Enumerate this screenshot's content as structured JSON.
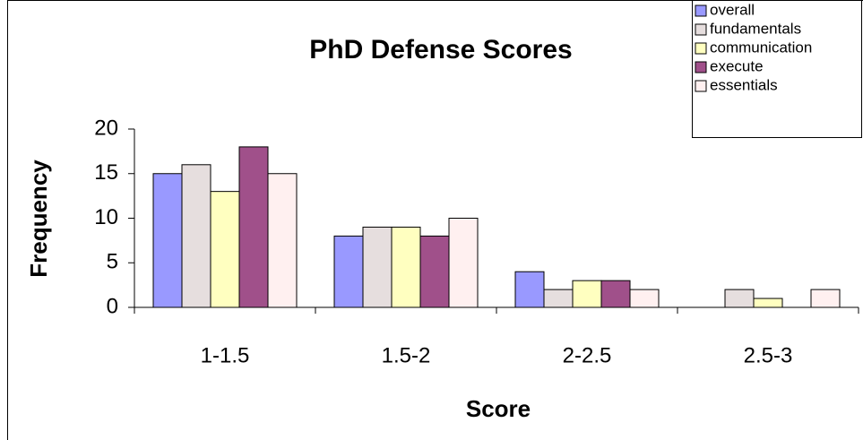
{
  "chart_data": {
    "type": "bar",
    "title": "PhD Defense Scores",
    "x_label": "Score",
    "y_label": "Frequency",
    "categories": [
      "1-1.5",
      "1.5-2",
      "2-2.5",
      "2.5-3"
    ],
    "series": [
      {
        "name": "overall",
        "color": "#9999ff",
        "values": [
          15,
          8,
          4,
          0
        ]
      },
      {
        "name": "fundamentals",
        "color": "#e6dede",
        "values": [
          16,
          9,
          2,
          2
        ]
      },
      {
        "name": "communication",
        "color": "#ffffc0",
        "values": [
          13,
          9,
          3,
          1
        ]
      },
      {
        "name": "execute",
        "color": "#a0508a",
        "values": [
          18,
          8,
          3,
          0
        ]
      },
      {
        "name": "essentials",
        "color": "#fff0f0",
        "values": [
          15,
          10,
          2,
          2
        ]
      }
    ],
    "ylim": [
      0,
      20
    ],
    "yticks": [
      0,
      5,
      10,
      15,
      20
    ],
    "legend": "top-right"
  }
}
